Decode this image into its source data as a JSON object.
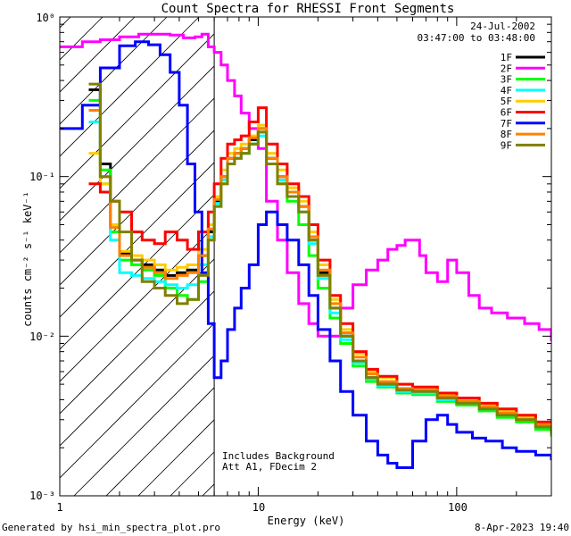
{
  "chart_data": {
    "type": "line",
    "title": "Count Spectra for RHESSI Front Segments",
    "xlabel": "Energy (keV)",
    "ylabel": "counts cm⁻² s⁻¹ keV⁻¹",
    "xscale": "log",
    "yscale": "log",
    "xlim": [
      1,
      300
    ],
    "ylim": [
      0.001,
      1
    ],
    "x_tick_labels": [
      "1",
      "10",
      "100"
    ],
    "y_tick_labels": [
      "10⁰",
      "10⁻¹",
      "10⁻²",
      "10⁻³"
    ],
    "y_tick_values": [
      1,
      0.1,
      0.01,
      0.001
    ],
    "x_tick_values": [
      1,
      10,
      100
    ],
    "date": "24-Jul-2002",
    "time_range": "03:47:00 to 03:48:00",
    "annotation_line1": "Includes Background",
    "annotation_line2": "Att A1, FDecim 2",
    "shaded_region_upper_kev": 6,
    "series": [
      {
        "name": "1F",
        "color": "#000000",
        "x": [
          1.4,
          1.6,
          1.8,
          2.0,
          2.3,
          2.6,
          3.0,
          3.4,
          3.9,
          4.4,
          5.0,
          5.6,
          6.0,
          6.5,
          7.0,
          7.6,
          8.2,
          9.0,
          10.0,
          11.0,
          12.5,
          14.0,
          16.0,
          18.0,
          20.0,
          23.0,
          26.0,
          30.0,
          35.0,
          40.0,
          50.0,
          60.0,
          80.0,
          100.0,
          130.0,
          160.0,
          200.0,
          250.0,
          300.0
        ],
        "y": [
          0.35,
          0.12,
          0.05,
          0.033,
          0.03,
          0.028,
          0.026,
          0.024,
          0.025,
          0.026,
          0.032,
          0.045,
          0.07,
          0.1,
          0.13,
          0.14,
          0.15,
          0.17,
          0.2,
          0.13,
          0.1,
          0.08,
          0.065,
          0.04,
          0.025,
          0.015,
          0.01,
          0.007,
          0.0055,
          0.005,
          0.0045,
          0.0045,
          0.004,
          0.0038,
          0.0035,
          0.0032,
          0.003,
          0.0027,
          0.0025
        ]
      },
      {
        "name": "2F",
        "color": "#ff00ff",
        "x": [
          1.0,
          1.3,
          1.6,
          2.0,
          2.5,
          3.0,
          3.6,
          4.2,
          4.8,
          5.2,
          5.6,
          6.0,
          6.5,
          7.0,
          7.6,
          8.2,
          9.0,
          10.0,
          11.0,
          12.5,
          14.0,
          16.0,
          18.0,
          20.0,
          23.0,
          26.0,
          30.0,
          35.0,
          40.0,
          45.0,
          50.0,
          55.0,
          60.0,
          65.0,
          70.0,
          80.0,
          90.0,
          100.0,
          115.0,
          130.0,
          150.0,
          180.0,
          220.0,
          260.0,
          300.0
        ],
        "y": [
          0.65,
          0.7,
          0.72,
          0.75,
          0.78,
          0.78,
          0.77,
          0.74,
          0.75,
          0.78,
          0.65,
          0.6,
          0.5,
          0.4,
          0.32,
          0.25,
          0.2,
          0.15,
          0.07,
          0.04,
          0.025,
          0.016,
          0.012,
          0.01,
          0.01,
          0.015,
          0.021,
          0.026,
          0.03,
          0.035,
          0.037,
          0.04,
          0.04,
          0.032,
          0.025,
          0.022,
          0.03,
          0.025,
          0.018,
          0.015,
          0.014,
          0.013,
          0.012,
          0.011,
          0.0095
        ]
      },
      {
        "name": "3F",
        "color": "#00ff00",
        "x": [
          1.4,
          1.6,
          1.8,
          2.0,
          2.3,
          2.6,
          3.0,
          3.4,
          3.9,
          4.4,
          5.0,
          5.6,
          6.0,
          6.5,
          7.0,
          7.6,
          8.2,
          9.0,
          10.0,
          11.0,
          12.5,
          14.0,
          16.0,
          18.0,
          20.0,
          23.0,
          26.0,
          30.0,
          35.0,
          40.0,
          50.0,
          60.0,
          80.0,
          100.0,
          130.0,
          160.0,
          200.0,
          250.0,
          300.0
        ],
        "y": [
          0.3,
          0.11,
          0.045,
          0.03,
          0.028,
          0.026,
          0.024,
          0.02,
          0.018,
          0.017,
          0.022,
          0.04,
          0.065,
          0.09,
          0.12,
          0.13,
          0.14,
          0.16,
          0.19,
          0.12,
          0.09,
          0.07,
          0.05,
          0.032,
          0.02,
          0.013,
          0.009,
          0.0065,
          0.0052,
          0.0048,
          0.0044,
          0.0043,
          0.0039,
          0.0037,
          0.0034,
          0.0031,
          0.0029,
          0.0026,
          0.0024
        ]
      },
      {
        "name": "4F",
        "color": "#00ffff",
        "x": [
          1.4,
          1.6,
          1.8,
          2.0,
          2.3,
          2.6,
          3.0,
          3.4,
          3.9,
          4.4,
          5.0,
          5.6,
          6.0,
          6.5,
          7.0,
          7.6,
          8.2,
          9.0,
          10.0,
          11.0,
          12.5,
          14.0,
          16.0,
          18.0,
          20.0,
          23.0,
          26.0,
          30.0,
          35.0,
          40.0,
          50.0,
          60.0,
          80.0,
          100.0,
          130.0,
          160.0,
          200.0,
          250.0,
          300.0
        ],
        "y": [
          0.22,
          0.09,
          0.04,
          0.025,
          0.024,
          0.023,
          0.022,
          0.021,
          0.02,
          0.021,
          0.028,
          0.042,
          0.068,
          0.095,
          0.12,
          0.13,
          0.14,
          0.16,
          0.18,
          0.12,
          0.095,
          0.075,
          0.06,
          0.038,
          0.023,
          0.014,
          0.0095,
          0.0068,
          0.0054,
          0.0049,
          0.0045,
          0.0044,
          0.004,
          0.0038,
          0.0035,
          0.0032,
          0.003,
          0.0027,
          0.0025
        ]
      },
      {
        "name": "5F",
        "color": "#ffcc00",
        "x": [
          1.4,
          1.6,
          1.8,
          2.0,
          2.3,
          2.6,
          3.0,
          3.4,
          3.9,
          4.4,
          5.0,
          5.6,
          6.0,
          6.5,
          7.0,
          7.6,
          8.2,
          9.0,
          10.0,
          11.0,
          12.5,
          14.0,
          16.0,
          18.0,
          20.0,
          23.0,
          26.0,
          30.0,
          35.0,
          40.0,
          50.0,
          60.0,
          80.0,
          100.0,
          130.0,
          160.0,
          200.0,
          250.0,
          300.0
        ],
        "y": [
          0.14,
          0.09,
          0.05,
          0.034,
          0.032,
          0.03,
          0.028,
          0.026,
          0.027,
          0.028,
          0.035,
          0.05,
          0.075,
          0.11,
          0.14,
          0.15,
          0.16,
          0.18,
          0.21,
          0.14,
          0.11,
          0.085,
          0.07,
          0.045,
          0.028,
          0.017,
          0.011,
          0.0078,
          0.006,
          0.0055,
          0.005,
          0.0048,
          0.0043,
          0.004,
          0.0037,
          0.0034,
          0.0031,
          0.0028,
          0.0026
        ]
      },
      {
        "name": "6F",
        "color": "#ff0000",
        "x": [
          1.4,
          1.6,
          1.8,
          2.0,
          2.3,
          2.6,
          3.0,
          3.4,
          3.9,
          4.4,
          5.0,
          5.6,
          6.0,
          6.5,
          7.0,
          7.6,
          8.2,
          9.0,
          10.0,
          11.0,
          12.5,
          14.0,
          16.0,
          18.0,
          20.0,
          23.0,
          26.0,
          30.0,
          35.0,
          40.0,
          50.0,
          60.0,
          80.0,
          100.0,
          130.0,
          160.0,
          200.0,
          250.0,
          300.0
        ],
        "y": [
          0.09,
          0.08,
          0.07,
          0.06,
          0.045,
          0.04,
          0.038,
          0.045,
          0.04,
          0.035,
          0.045,
          0.06,
          0.09,
          0.13,
          0.16,
          0.17,
          0.18,
          0.22,
          0.27,
          0.16,
          0.12,
          0.09,
          0.075,
          0.05,
          0.03,
          0.018,
          0.012,
          0.008,
          0.0062,
          0.0056,
          0.005,
          0.0048,
          0.0044,
          0.0041,
          0.0038,
          0.0035,
          0.0032,
          0.0029,
          0.0027
        ]
      },
      {
        "name": "7F",
        "color": "#0000ff",
        "x": [
          1.0,
          1.3,
          1.6,
          2.0,
          2.4,
          2.8,
          3.2,
          3.6,
          4.0,
          4.4,
          4.8,
          5.2,
          5.6,
          6.0,
          6.5,
          7.0,
          7.6,
          8.2,
          9.0,
          10.0,
          11.0,
          12.5,
          14.0,
          16.0,
          18.0,
          20.0,
          23.0,
          26.0,
          30.0,
          35.0,
          40.0,
          45.0,
          50.0,
          60.0,
          70.0,
          80.0,
          90.0,
          100.0,
          120.0,
          140.0,
          170.0,
          200.0,
          250.0,
          300.0
        ],
        "y": [
          0.2,
          0.28,
          0.48,
          0.66,
          0.7,
          0.67,
          0.58,
          0.45,
          0.28,
          0.12,
          0.06,
          0.025,
          0.012,
          0.0055,
          0.007,
          0.011,
          0.015,
          0.02,
          0.028,
          0.05,
          0.06,
          0.05,
          0.04,
          0.028,
          0.018,
          0.011,
          0.007,
          0.0045,
          0.0032,
          0.0022,
          0.0018,
          0.0016,
          0.0015,
          0.0022,
          0.003,
          0.0032,
          0.0028,
          0.0025,
          0.0023,
          0.0022,
          0.002,
          0.0019,
          0.0018,
          0.0017
        ]
      },
      {
        "name": "8F",
        "color": "#ff8000",
        "x": [
          1.4,
          1.6,
          1.8,
          2.0,
          2.3,
          2.6,
          3.0,
          3.4,
          3.9,
          4.4,
          5.0,
          5.6,
          6.0,
          6.5,
          7.0,
          7.6,
          8.2,
          9.0,
          10.0,
          11.0,
          12.5,
          14.0,
          16.0,
          18.0,
          20.0,
          23.0,
          26.0,
          30.0,
          35.0,
          40.0,
          50.0,
          60.0,
          80.0,
          100.0,
          130.0,
          160.0,
          200.0,
          250.0,
          300.0
        ],
        "y": [
          0.26,
          0.1,
          0.048,
          0.032,
          0.03,
          0.027,
          0.025,
          0.023,
          0.024,
          0.025,
          0.032,
          0.047,
          0.072,
          0.1,
          0.13,
          0.14,
          0.15,
          0.175,
          0.2,
          0.13,
          0.1,
          0.08,
          0.065,
          0.042,
          0.026,
          0.016,
          0.0105,
          0.0074,
          0.0058,
          0.0052,
          0.0047,
          0.0046,
          0.0042,
          0.0039,
          0.0036,
          0.0033,
          0.003,
          0.0028,
          0.0026
        ]
      },
      {
        "name": "9F",
        "color": "#808000",
        "x": [
          1.4,
          1.6,
          1.8,
          2.0,
          2.3,
          2.6,
          3.0,
          3.4,
          3.9,
          4.4,
          5.0,
          5.6,
          6.0,
          6.5,
          7.0,
          7.6,
          8.2,
          9.0,
          10.0,
          11.0,
          12.5,
          14.0,
          16.0,
          18.0,
          20.0,
          23.0,
          26.0,
          30.0,
          35.0,
          40.0,
          50.0,
          60.0,
          80.0,
          100.0,
          130.0,
          160.0,
          200.0,
          250.0,
          300.0
        ],
        "y": [
          0.38,
          0.1,
          0.07,
          0.045,
          0.03,
          0.022,
          0.02,
          0.018,
          0.016,
          0.017,
          0.024,
          0.04,
          0.065,
          0.09,
          0.12,
          0.13,
          0.14,
          0.16,
          0.19,
          0.12,
          0.09,
          0.075,
          0.06,
          0.04,
          0.024,
          0.015,
          0.01,
          0.007,
          0.0055,
          0.005,
          0.0046,
          0.0045,
          0.0041,
          0.0038,
          0.0035,
          0.0032,
          0.003,
          0.0027,
          0.0025
        ]
      }
    ]
  },
  "footer": {
    "generator": "Generated by hsi_min_spectra_plot.pro",
    "timestamp": "8-Apr-2023 19:40"
  }
}
